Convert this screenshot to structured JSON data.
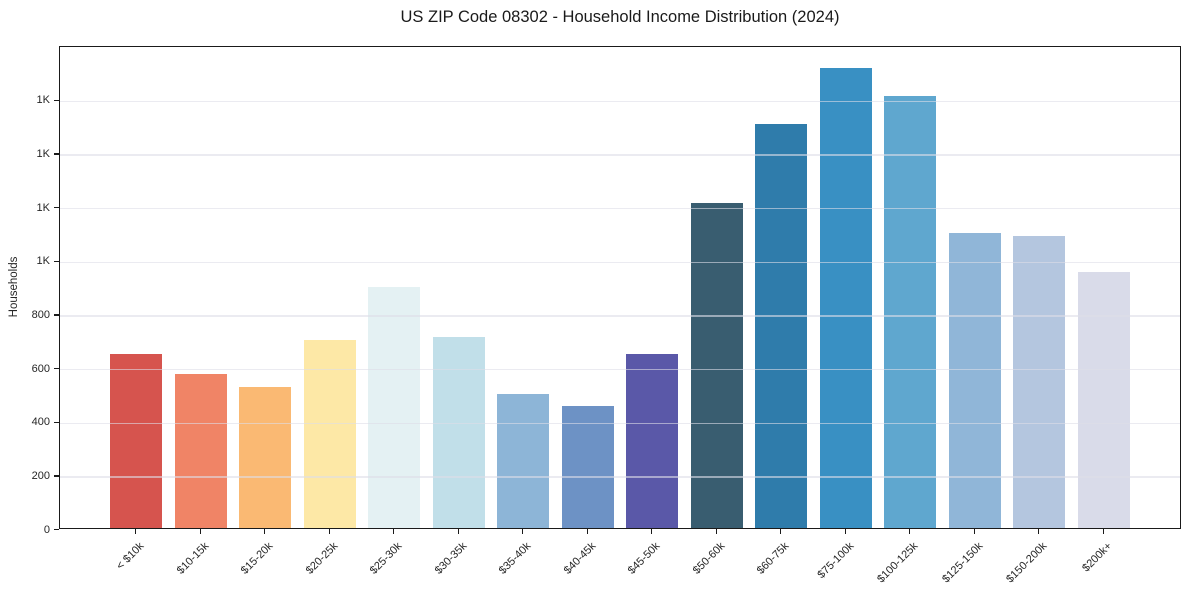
{
  "figure": {
    "title": "US ZIP Code 08302 - Household Income Distribution (2024)",
    "ylabel": "Households"
  },
  "chart_data": {
    "type": "bar",
    "title": "US ZIP Code 08302 - Household Income Distribution (2024)",
    "xlabel": "",
    "ylabel": "Households",
    "categories": [
      "< $10k",
      "$10-15k",
      "$15-20k",
      "$20-25k",
      "$25-30k",
      "$30-35k",
      "$35-40k",
      "$40-45k",
      "$45-50k",
      "$50-60k",
      "$60-75k",
      "$75-100k",
      "$100-125k",
      "$125-150k",
      "$150-200k",
      "$200k+"
    ],
    "values": [
      650,
      575,
      525,
      700,
      900,
      710,
      500,
      455,
      650,
      1210,
      1505,
      1715,
      1610,
      1100,
      1090,
      955
    ],
    "bar_colors": [
      "#d6544e",
      "#f08466",
      "#fab973",
      "#fde8a6",
      "#e4f1f3",
      "#c1dfe9",
      "#8db5d7",
      "#6d92c5",
      "#5a58a8",
      "#395d70",
      "#2f7cab",
      "#3990c3",
      "#5fa7cf",
      "#90b6d8",
      "#b4c6df",
      "#d9dbe9"
    ],
    "ylim": [
      0,
      1800
    ],
    "yticks": [
      {
        "value": 0,
        "label": "0"
      },
      {
        "value": 200,
        "label": "200"
      },
      {
        "value": 400,
        "label": "400"
      },
      {
        "value": 600,
        "label": "600"
      },
      {
        "value": 800,
        "label": "800"
      },
      {
        "value": 1000,
        "label": "1K"
      },
      {
        "value": 1200,
        "label": "1K"
      },
      {
        "value": 1400,
        "label": "1K"
      },
      {
        "value": 1600,
        "label": "1K"
      }
    ],
    "grid": "horizontal",
    "gridline_color": "rgba(222,222,232,0.6)",
    "axis_color": "#1a1a1a",
    "text_color": "#262626",
    "background": "#ffffff"
  }
}
